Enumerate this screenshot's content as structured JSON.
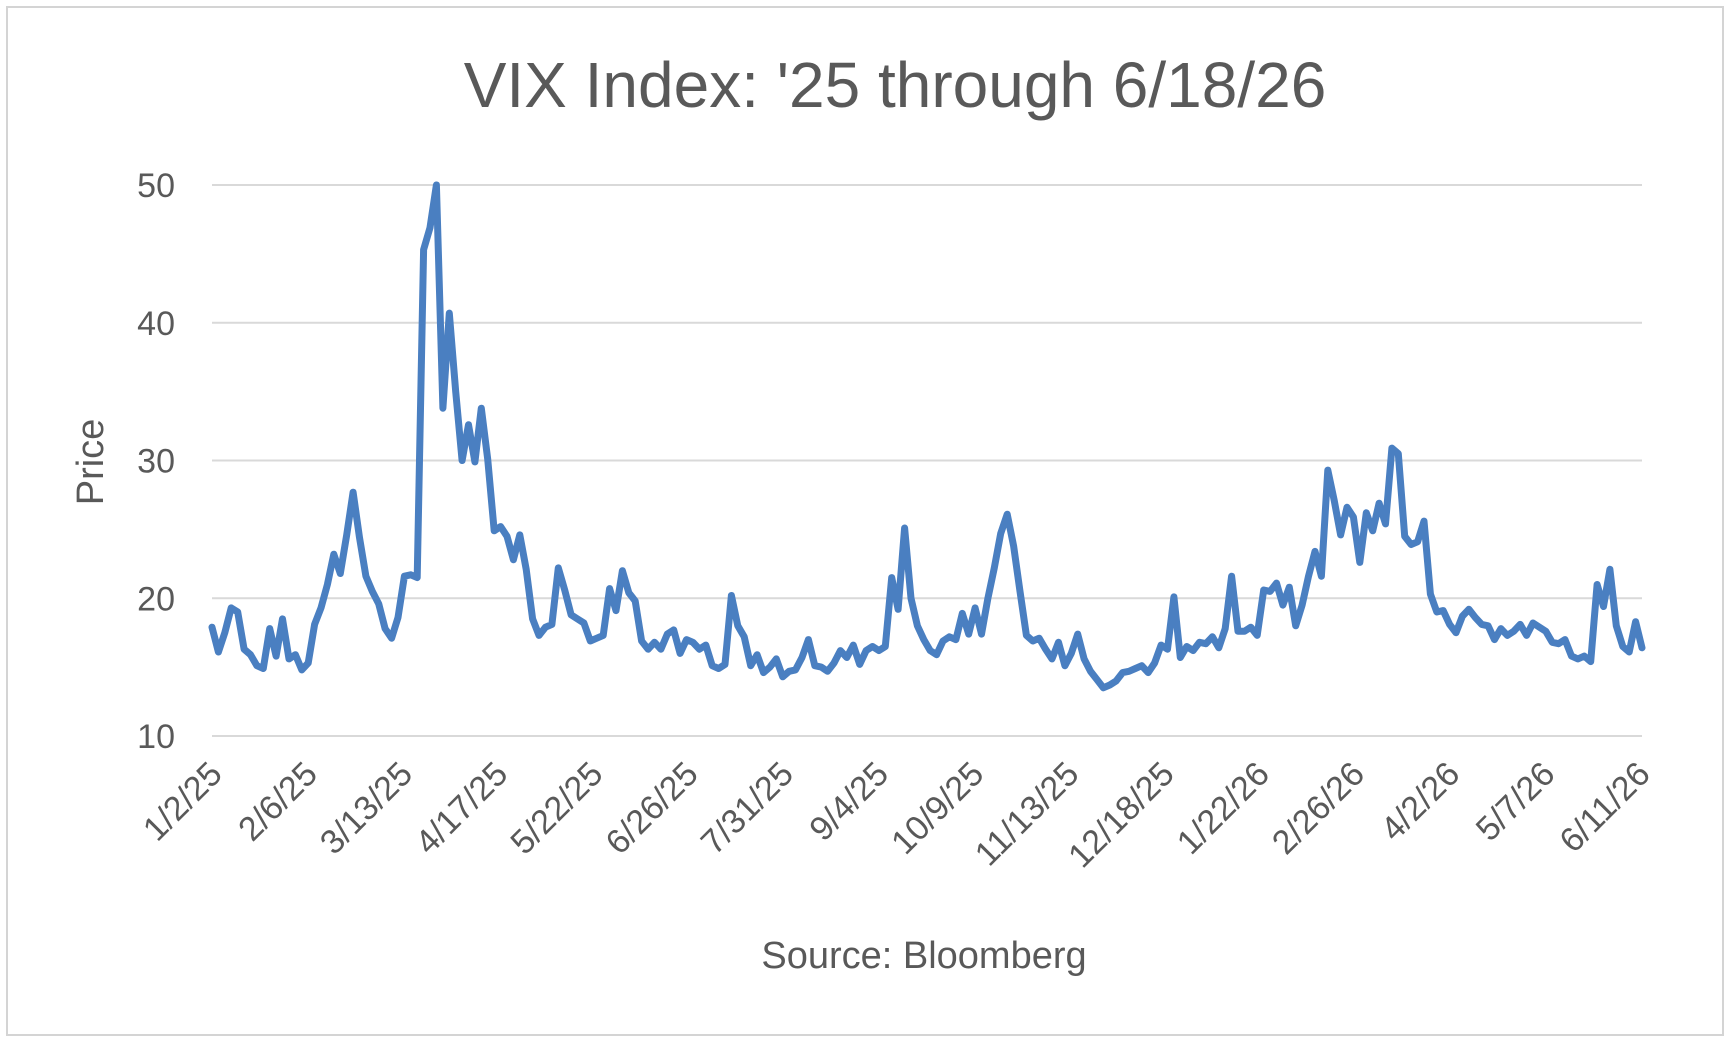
{
  "chart_data": {
    "type": "line",
    "title": "VIX Index: '25 through 6/18/26",
    "xlabel": "Source: Bloomberg",
    "ylabel": "Price",
    "ylim": [
      10,
      50
    ],
    "yticks": [
      "10",
      "20",
      "30",
      "40",
      "50"
    ],
    "xticks": [
      "1/2/25",
      "2/6/25",
      "3/13/25",
      "4/17/25",
      "5/22/25",
      "6/26/25",
      "7/31/25",
      "9/4/25",
      "10/9/25",
      "11/13/25",
      "12/18/25",
      "1/22/26",
      "2/26/26",
      "4/2/26",
      "5/7/26",
      "6/11/26"
    ],
    "grid": "horizontal",
    "legend": "none",
    "line_color": "#4a7fc1",
    "series": [
      {
        "values": [
          17.9,
          16.1,
          17.5,
          19.3,
          19.0,
          16.3,
          15.9,
          15.1,
          14.9,
          17.8,
          15.8,
          18.5,
          15.6,
          15.9,
          14.8,
          15.3,
          18.1,
          19.3,
          21.0,
          23.2,
          21.8,
          24.6,
          27.7,
          24.4,
          21.6,
          20.5,
          19.6,
          17.8,
          17.1,
          18.6,
          21.6,
          21.7,
          21.5,
          45.3,
          46.9,
          50.0,
          33.8,
          40.7,
          35.0,
          30.0,
          32.6,
          29.9,
          33.8,
          30.1,
          24.9,
          25.2,
          24.5,
          22.8,
          24.6,
          22.1,
          18.5,
          17.3,
          17.9,
          18.1,
          22.2,
          20.6,
          18.8,
          18.5,
          18.2,
          16.9,
          17.1,
          17.3,
          20.7,
          19.1,
          22.0,
          20.4,
          19.8,
          16.9,
          16.3,
          16.8,
          16.3,
          17.4,
          17.7,
          16.0,
          17.0,
          16.8,
          16.3,
          16.6,
          15.1,
          14.9,
          15.2,
          20.2,
          18.0,
          17.2,
          15.1,
          15.9,
          14.6,
          15.0,
          15.6,
          14.3,
          14.7,
          14.8,
          15.7,
          17.0,
          15.1,
          15.0,
          14.7,
          15.3,
          16.2,
          15.7,
          16.6,
          15.2,
          16.2,
          16.5,
          16.2,
          16.5,
          21.5,
          19.2,
          25.1,
          20.0,
          18.0,
          17.0,
          16.2,
          15.9,
          16.9,
          17.2,
          17.0,
          18.9,
          17.4,
          19.3,
          17.4,
          20.0,
          22.2,
          24.7,
          26.1,
          23.8,
          20.5,
          17.3,
          16.9,
          17.1,
          16.3,
          15.6,
          16.8,
          15.1,
          16.0,
          17.4,
          15.6,
          14.7,
          14.1,
          13.5,
          13.7,
          14.0,
          14.6,
          14.7,
          14.9,
          15.1,
          14.6,
          15.3,
          16.6,
          16.3,
          20.1,
          15.7,
          16.5,
          16.2,
          16.8,
          16.7,
          17.2,
          16.4,
          17.8,
          21.6,
          17.6,
          17.6,
          17.9,
          17.3,
          20.6,
          20.5,
          21.1,
          19.5,
          20.8,
          18.0,
          19.5,
          21.6,
          23.4,
          21.6,
          29.3,
          27.1,
          24.6,
          26.6,
          25.9,
          22.6,
          26.2,
          24.9,
          26.9,
          25.4,
          30.9,
          30.5,
          24.5,
          23.9,
          24.1,
          25.6,
          20.3,
          19.0,
          19.1,
          18.1,
          17.5,
          18.7,
          19.2,
          18.6,
          18.1,
          18.0,
          17.0,
          17.8,
          17.3,
          17.6,
          18.1,
          17.3,
          18.2,
          17.9,
          17.6,
          16.8,
          16.7,
          17.0,
          15.8,
          15.6,
          15.8,
          15.4,
          21.0,
          19.4,
          22.1,
          18.0,
          16.5,
          16.1,
          18.3,
          16.4
        ]
      }
    ]
  }
}
